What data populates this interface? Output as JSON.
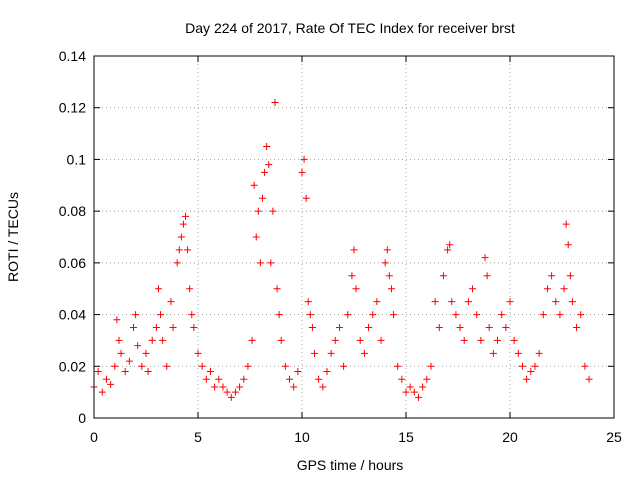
{
  "chart_data": {
    "type": "scatter",
    "title": "Day 224 of 2017, Rate Of TEC Index for receiver brst",
    "xlabel": "GPS time / hours",
    "ylabel": "ROTI / TECUs",
    "xlim": [
      0,
      25
    ],
    "ylim": [
      0,
      0.14
    ],
    "xticks": [
      0,
      5,
      10,
      15,
      20,
      25
    ],
    "xtick_labels": [
      "0",
      "5",
      "10",
      "15",
      "20",
      "25"
    ],
    "yticks": [
      0,
      0.02,
      0.04,
      0.06,
      0.08,
      0.1,
      0.12,
      0.14
    ],
    "ytick_labels": [
      "0",
      "0.02",
      "0.04",
      "0.06",
      "0.08",
      "0.1",
      "0.12",
      "0.14"
    ],
    "grid": true,
    "marker": "plus",
    "color": "#ff0000",
    "series": [
      {
        "x": [
          0.0,
          0.2,
          0.4,
          0.6,
          0.8,
          1.0,
          1.1,
          1.2,
          1.3,
          1.5,
          1.7,
          1.9,
          2.0,
          2.1,
          2.3,
          2.5,
          2.6,
          2.8,
          3.0,
          3.1,
          3.2,
          3.3,
          3.5,
          3.7,
          3.8,
          4.0,
          4.1,
          4.2,
          4.3,
          4.4,
          4.5,
          4.6,
          4.7,
          4.8,
          5.0,
          5.2,
          5.4,
          5.6,
          5.8,
          6.0,
          6.2,
          6.4,
          6.6,
          6.8,
          7.0,
          7.2,
          7.4,
          7.6,
          7.7,
          7.8,
          7.9,
          8.0,
          8.1,
          8.2,
          8.3,
          8.4,
          8.5,
          8.6,
          8.7,
          8.8,
          8.9,
          9.0,
          9.2,
          9.4,
          9.6,
          9.8,
          10.0,
          10.1,
          10.2,
          10.3,
          10.4,
          10.5,
          10.6,
          10.8,
          11.0,
          11.2,
          11.4,
          11.6,
          11.8,
          12.0,
          12.2,
          12.4,
          12.5,
          12.6,
          12.8,
          13.0,
          13.2,
          13.4,
          13.6,
          13.8,
          14.0,
          14.1,
          14.2,
          14.3,
          14.4,
          14.6,
          14.8,
          15.0,
          15.2,
          15.4,
          15.6,
          15.8,
          16.0,
          16.2,
          16.4,
          16.6,
          16.8,
          17.0,
          17.1,
          17.2,
          17.4,
          17.6,
          17.8,
          18.0,
          18.2,
          18.4,
          18.6,
          18.8,
          18.9,
          19.0,
          19.2,
          19.4,
          19.6,
          19.8,
          20.0,
          20.2,
          20.4,
          20.6,
          20.8,
          21.0,
          21.2,
          21.4,
          21.6,
          21.8,
          22.0,
          22.2,
          22.4,
          22.6,
          22.7,
          22.8,
          22.9,
          23.0,
          23.2,
          23.4,
          23.6,
          23.8
        ],
        "y": [
          0.012,
          0.018,
          0.01,
          0.015,
          0.013,
          0.02,
          0.038,
          0.03,
          0.025,
          0.018,
          0.022,
          0.035,
          0.04,
          0.028,
          0.02,
          0.025,
          0.018,
          0.03,
          0.035,
          0.05,
          0.04,
          0.03,
          0.02,
          0.045,
          0.035,
          0.06,
          0.065,
          0.07,
          0.075,
          0.078,
          0.065,
          0.05,
          0.04,
          0.035,
          0.025,
          0.02,
          0.015,
          0.018,
          0.012,
          0.015,
          0.012,
          0.01,
          0.008,
          0.01,
          0.012,
          0.015,
          0.02,
          0.03,
          0.09,
          0.07,
          0.08,
          0.06,
          0.085,
          0.095,
          0.105,
          0.098,
          0.06,
          0.08,
          0.122,
          0.05,
          0.04,
          0.03,
          0.02,
          0.015,
          0.012,
          0.018,
          0.095,
          0.1,
          0.085,
          0.045,
          0.04,
          0.035,
          0.025,
          0.015,
          0.012,
          0.018,
          0.025,
          0.03,
          0.035,
          0.02,
          0.04,
          0.055,
          0.065,
          0.05,
          0.03,
          0.025,
          0.035,
          0.04,
          0.045,
          0.03,
          0.06,
          0.065,
          0.055,
          0.05,
          0.04,
          0.02,
          0.015,
          0.01,
          0.012,
          0.01,
          0.008,
          0.012,
          0.015,
          0.02,
          0.045,
          0.035,
          0.055,
          0.065,
          0.067,
          0.045,
          0.04,
          0.035,
          0.03,
          0.045,
          0.05,
          0.04,
          0.03,
          0.062,
          0.055,
          0.035,
          0.025,
          0.03,
          0.04,
          0.035,
          0.045,
          0.03,
          0.025,
          0.02,
          0.015,
          0.018,
          0.02,
          0.025,
          0.04,
          0.05,
          0.055,
          0.045,
          0.04,
          0.05,
          0.075,
          0.067,
          0.055,
          0.045,
          0.035,
          0.04,
          0.02,
          0.015
        ]
      }
    ]
  }
}
